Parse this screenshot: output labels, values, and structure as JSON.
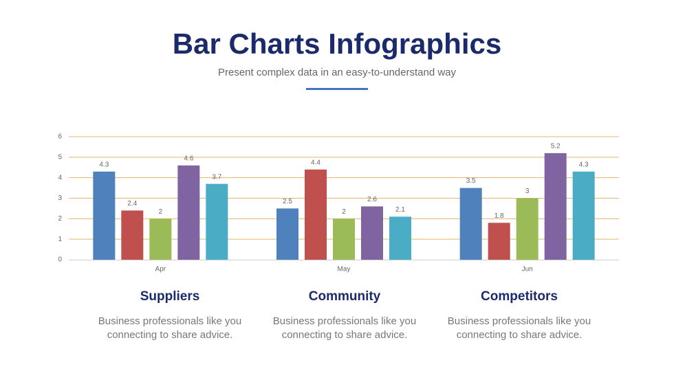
{
  "chart_data": {
    "type": "bar",
    "title": "Bar Charts Infographics",
    "subtitle": "Present complex data in an easy-to-understand way",
    "categories": [
      "Apr",
      "May",
      "Jun"
    ],
    "series": [
      {
        "color": "#4f81bd",
        "values": [
          4.3,
          2.5,
          3.5
        ]
      },
      {
        "color": "#c0504d",
        "values": [
          2.4,
          4.4,
          1.8
        ]
      },
      {
        "color": "#9bbb59",
        "values": [
          2,
          2,
          3
        ]
      },
      {
        "color": "#8064a2",
        "values": [
          4.6,
          2.6,
          5.2
        ]
      },
      {
        "color": "#4bacc6",
        "values": [
          3.7,
          2.1,
          4.3
        ]
      }
    ],
    "ylim": [
      0,
      6
    ],
    "yticks": [
      0,
      1,
      2,
      3,
      4,
      5,
      6
    ],
    "grid": true,
    "grid_color": "#e4b66e"
  },
  "captions": [
    {
      "title": "Suppliers",
      "lines": [
        "Business professionals like you",
        "connecting to share advice."
      ]
    },
    {
      "title": "Community",
      "lines": [
        "Business professionals like you",
        "connecting to share advice."
      ]
    },
    {
      "title": "Competitors",
      "lines": [
        "Business professionals like you",
        "connecting to share advice."
      ]
    }
  ]
}
